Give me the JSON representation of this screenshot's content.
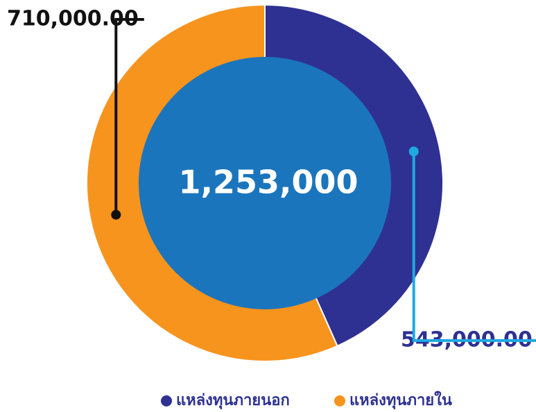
{
  "chart_data": {
    "type": "donut",
    "center_label": "1,253,000",
    "series": [
      {
        "name": "แหล่งทุนภายนอก",
        "color": "#2e3192",
        "leader_color": "#1fa9e1"
      },
      {
        "name": "แหล่งทุนภายใน",
        "color": "#f7941d",
        "leader_color": "#111111"
      }
    ],
    "values": [
      543000,
      710000
    ],
    "value_labels": [
      "543,000.00",
      "710,000.00"
    ],
    "inner_color": "#1b75bc"
  }
}
